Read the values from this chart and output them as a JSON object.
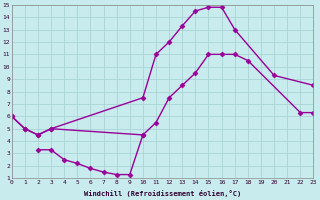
{
  "xlabel": "Windchill (Refroidissement éolien,°C)",
  "xlim": [
    0,
    23
  ],
  "ylim": [
    1,
    15
  ],
  "xticks": [
    0,
    1,
    2,
    3,
    4,
    5,
    6,
    7,
    8,
    9,
    10,
    11,
    12,
    13,
    14,
    15,
    16,
    17,
    18,
    19,
    20,
    21,
    22,
    23
  ],
  "yticks": [
    1,
    2,
    3,
    4,
    5,
    6,
    7,
    8,
    9,
    10,
    11,
    12,
    13,
    14,
    15
  ],
  "bg_color": "#c8eced",
  "grid_color": "#a8d4d4",
  "line_color": "#990099",
  "line_width": 1.0,
  "marker": "D",
  "marker_size": 2.5,
  "curves": [
    {
      "x": [
        0,
        1,
        2,
        3,
        10,
        11,
        12,
        13,
        14,
        15,
        16,
        17,
        18,
        22,
        23
      ],
      "y": [
        6,
        5,
        4.5,
        5,
        4.5,
        5.5,
        7.5,
        8.5,
        9.5,
        11,
        11,
        11,
        10.5,
        6.3,
        6.3
      ]
    },
    {
      "x": [
        0,
        1,
        2,
        3,
        10,
        11,
        12,
        13,
        14,
        15,
        16,
        17,
        20,
        23
      ],
      "y": [
        6,
        5,
        4.5,
        5,
        7.5,
        11,
        12,
        13.3,
        14.5,
        14.8,
        14.8,
        13,
        9.3,
        8.5
      ]
    },
    {
      "x": [
        2,
        3,
        4,
        5,
        6,
        7,
        8,
        9,
        10
      ],
      "y": [
        3.3,
        3.3,
        2.5,
        2.2,
        1.8,
        1.5,
        1.3,
        1.3,
        4.5
      ]
    }
  ]
}
